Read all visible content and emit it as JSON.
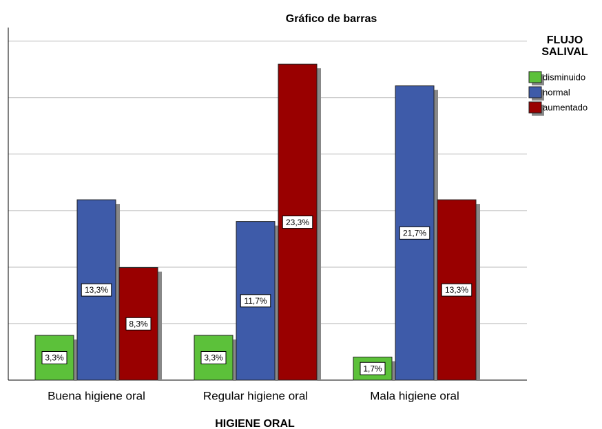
{
  "chart_data": {
    "type": "bar",
    "title": "Gráfico de barras",
    "x_label": "HIGIENE ORAL",
    "legend_title": "FLUJO SALIVAL",
    "categories": [
      "Buena higiene oral",
      "Regular higiene oral",
      "Mala higiene oral"
    ],
    "series": [
      {
        "name": "disminuido",
        "color": "#5cc13a",
        "values": [
          3.3,
          3.3,
          1.7
        ],
        "value_labels": [
          "3,3%",
          "3,3%",
          "1,7%"
        ]
      },
      {
        "name": "normal",
        "color": "#3e5ba9",
        "values": [
          13.3,
          11.7,
          21.7
        ],
        "value_labels": [
          "13,3%",
          "11,7%",
          "21,7%"
        ]
      },
      {
        "name": "aumentado",
        "color": "#990000",
        "values": [
          8.3,
          23.3,
          13.3
        ],
        "value_labels": [
          "8,3%",
          "23,3%",
          "13,3%"
        ]
      }
    ],
    "ylim": [
      0,
      26
    ],
    "yticks": [
      0,
      4.17,
      8.33,
      12.5,
      16.67,
      20.83,
      25
    ],
    "grid": true,
    "legend": "right"
  }
}
